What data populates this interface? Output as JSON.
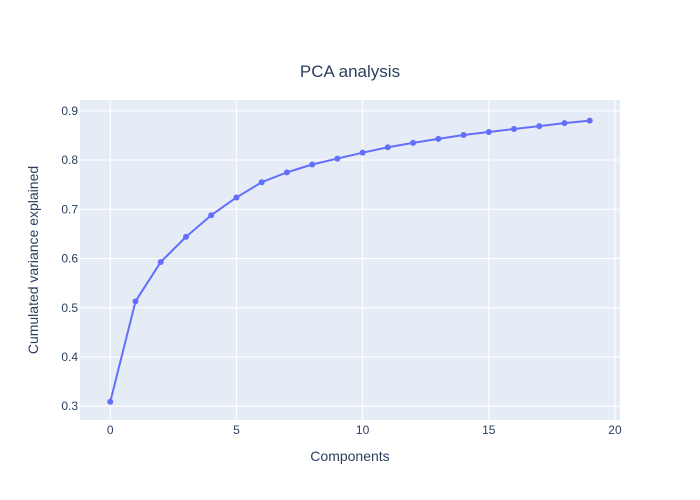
{
  "chart_data": {
    "type": "line",
    "title": "PCA analysis",
    "xlabel": "Components",
    "ylabel": "Cumulated variance explained",
    "xlim": [
      -1.2,
      20.2
    ],
    "ylim": [
      0.272,
      0.922
    ],
    "x_ticks": [
      0,
      5,
      10,
      15,
      20
    ],
    "y_ticks": [
      0.3,
      0.4,
      0.5,
      0.6,
      0.7,
      0.8,
      0.9
    ],
    "grid": true,
    "legend": "none",
    "series": [
      {
        "mode": "lines+markers",
        "color": "#636efa",
        "x": [
          0,
          1,
          2,
          3,
          4,
          5,
          6,
          7,
          8,
          9,
          10,
          11,
          12,
          13,
          14,
          15,
          16,
          17,
          18,
          19
        ],
        "y": [
          0.309,
          0.513,
          0.593,
          0.644,
          0.688,
          0.724,
          0.755,
          0.775,
          0.791,
          0.803,
          0.815,
          0.826,
          0.835,
          0.843,
          0.851,
          0.857,
          0.863,
          0.869,
          0.875,
          0.88
        ]
      }
    ]
  },
  "colors": {
    "plot_background": "#e5ecf6",
    "grid": "#ffffff",
    "text": "#2a3f5f"
  }
}
